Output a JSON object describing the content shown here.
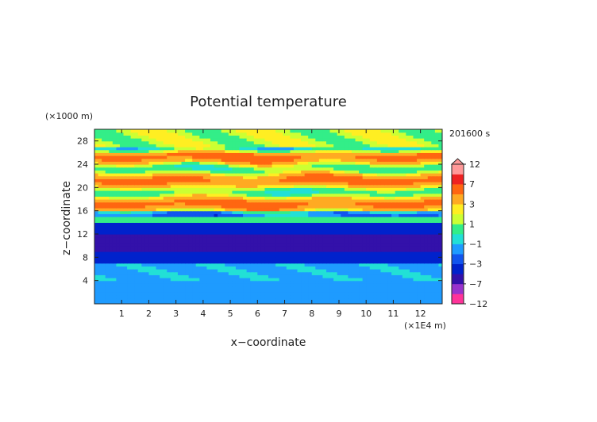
{
  "chart_data": {
    "type": "heatmap",
    "title": "Potential temperature",
    "xlabel": "x−coordinate",
    "ylabel": "z−coordinate",
    "x_unit": "(×1E4 m)",
    "y_unit": "(×1000 m)",
    "time_label": "201600 s",
    "xlim": [
      0,
      12.8
    ],
    "ylim": [
      0,
      30
    ],
    "x_ticks": [
      1,
      2,
      3,
      4,
      5,
      6,
      7,
      8,
      9,
      10,
      11,
      12
    ],
    "y_ticks": [
      4,
      8,
      12,
      16,
      20,
      24,
      28
    ],
    "colorbar": {
      "labels": [
        "12",
        "7",
        "3",
        "1",
        "−1",
        "−3",
        "−7",
        "−12"
      ],
      "label_values": [
        12,
        7,
        3,
        1,
        -1,
        -3,
        -7,
        -12
      ],
      "levels": [
        -12,
        -9,
        -7,
        -5,
        -3,
        -2,
        -1,
        0,
        1,
        2,
        3,
        5,
        7,
        9,
        12
      ],
      "colors": [
        "#ff3399",
        "#9933cc",
        "#3311aa",
        "#0022cc",
        "#1155ee",
        "#1e9bff",
        "#22e0d6",
        "#33ee88",
        "#ccff33",
        "#ffee22",
        "#ffaa22",
        "#ff6611",
        "#ee2222",
        "#ff9999"
      ]
    },
    "bands": [
      {
        "z_range": [
          0,
          4
        ],
        "value": -1.5,
        "note": "cyan"
      },
      {
        "z_range": [
          4,
          7
        ],
        "value": -1.2,
        "note": "cyan with green patches"
      },
      {
        "z_range": [
          7,
          9
        ],
        "value": -3.5,
        "note": "blue"
      },
      {
        "z_range": [
          9,
          12
        ],
        "value": -6,
        "note": "dark blue"
      },
      {
        "z_range": [
          12,
          14
        ],
        "value": -3.5,
        "note": "blue"
      },
      {
        "z_range": [
          14,
          16
        ],
        "value": 0.5,
        "note": "green/yellow"
      },
      {
        "z_range": [
          16,
          26
        ],
        "value": 3,
        "note": "orange/red"
      },
      {
        "z_range": [
          26,
          30
        ],
        "value": 1.5,
        "note": "yellow"
      }
    ]
  }
}
